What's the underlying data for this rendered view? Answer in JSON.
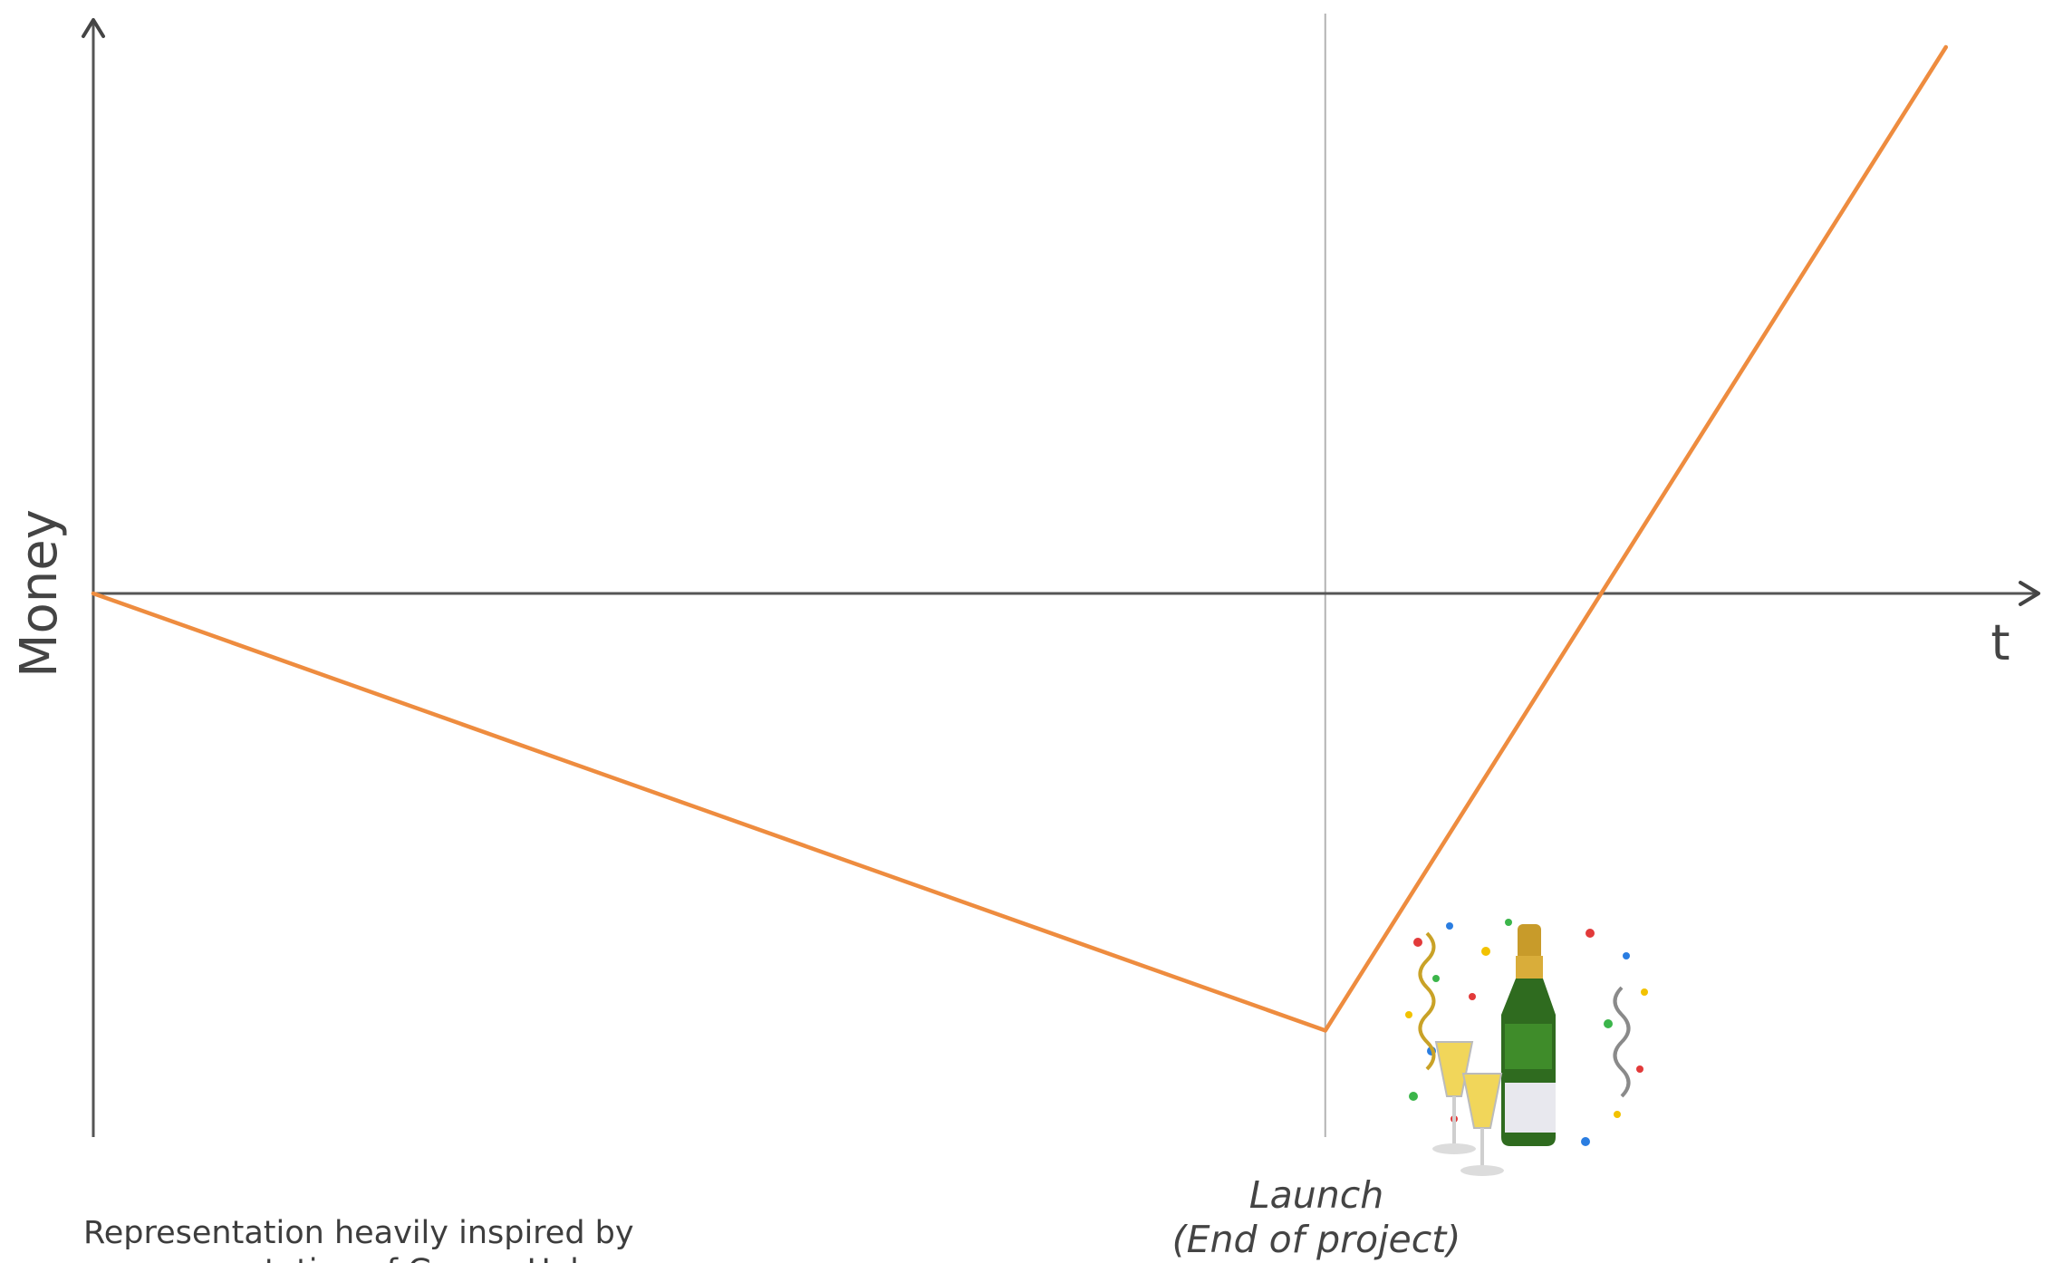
{
  "chart_data": {
    "type": "line",
    "title": "",
    "xlabel": "t",
    "ylabel": "Money",
    "colors": {
      "series": "#ee8c3f",
      "axis": "#555555",
      "reference": "#b3b3b3"
    },
    "series": [
      {
        "x": [
          0,
          0.665,
          1.0
        ],
        "y": [
          0,
          -0.8,
          1.0
        ]
      }
    ],
    "reference_line": {
      "x": 0.665,
      "label_line1": "Launch",
      "label_line2": "(End of project)"
    },
    "xlim": [
      0,
      1.05
    ],
    "ylim": [
      -1.0,
      1.05
    ],
    "grid": false,
    "decoration": {
      "icon": "champagne-celebration-icon"
    },
    "footnote": "Representation heavily inspired by",
    "footnote_line2": "a presentation of Gregor Hohpe"
  }
}
